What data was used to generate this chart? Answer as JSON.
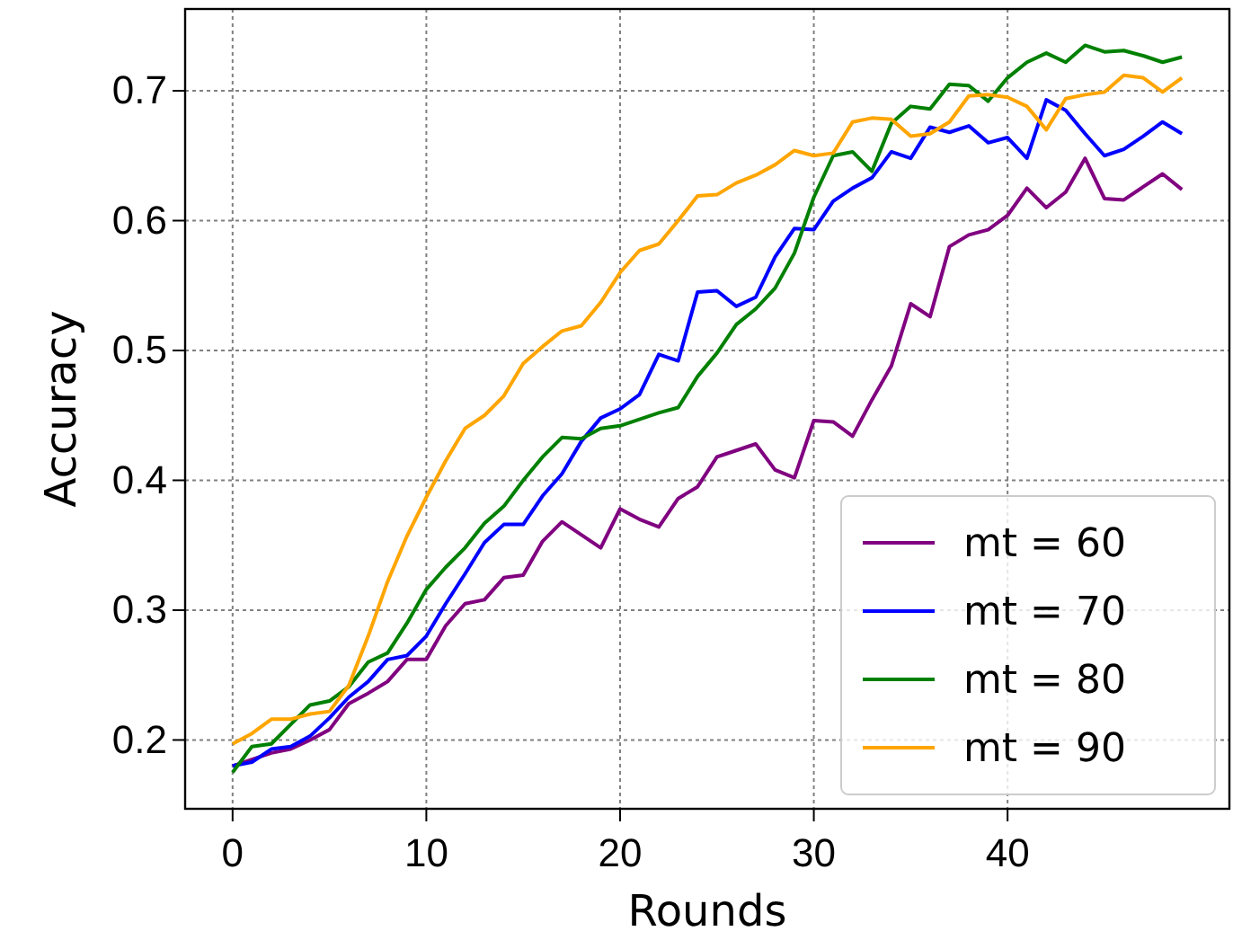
{
  "chart_data": {
    "type": "line",
    "xlabel": "Rounds",
    "ylabel": "Accuracy",
    "x": [
      0,
      1,
      2,
      3,
      4,
      5,
      6,
      7,
      8,
      9,
      10,
      11,
      12,
      13,
      14,
      15,
      16,
      17,
      18,
      19,
      20,
      21,
      22,
      23,
      24,
      25,
      26,
      27,
      28,
      29,
      30,
      31,
      32,
      33,
      34,
      35,
      36,
      37,
      38,
      39,
      40,
      41,
      42,
      43,
      44,
      45,
      46,
      47,
      48,
      49
    ],
    "xlim": [
      -2.45,
      51.45
    ],
    "xticks": [
      0,
      10,
      20,
      30,
      40
    ],
    "ylim": [
      0.147,
      0.763
    ],
    "yticks": [
      {
        "value": 0.2,
        "label": "0.2"
      },
      {
        "value": 0.3,
        "label": "0.3"
      },
      {
        "value": 0.4,
        "label": "0.4"
      },
      {
        "value": 0.5,
        "label": "0.5"
      },
      {
        "value": 0.6,
        "label": "0.6"
      },
      {
        "value": 0.7,
        "label": "0.7"
      }
    ],
    "grid": true,
    "legend": "bottom right",
    "line_style": "solid",
    "marker": "none",
    "series": [
      {
        "name": "mt = 60",
        "color": "#800080",
        "values": [
          0.18,
          0.185,
          0.19,
          0.193,
          0.2,
          0.208,
          0.228,
          0.236,
          0.245,
          0.262,
          0.262,
          0.288,
          0.305,
          0.308,
          0.325,
          0.327,
          0.353,
          0.368,
          0.358,
          0.348,
          0.378,
          0.37,
          0.364,
          0.386,
          0.395,
          0.418,
          0.423,
          0.428,
          0.408,
          0.402,
          0.446,
          0.445,
          0.434,
          0.462,
          0.488,
          0.536,
          0.526,
          0.58,
          0.589,
          0.593,
          0.604,
          0.625,
          0.61,
          0.622,
          0.648,
          0.617,
          0.616,
          0.626,
          0.636,
          0.624
        ]
      },
      {
        "name": "mt = 70",
        "color": "#0000ff",
        "values": [
          0.18,
          0.183,
          0.193,
          0.195,
          0.203,
          0.217,
          0.233,
          0.245,
          0.262,
          0.265,
          0.28,
          0.305,
          0.328,
          0.352,
          0.366,
          0.366,
          0.388,
          0.405,
          0.43,
          0.448,
          0.455,
          0.466,
          0.497,
          0.492,
          0.545,
          0.546,
          0.534,
          0.541,
          0.572,
          0.594,
          0.593,
          0.615,
          0.625,
          0.633,
          0.653,
          0.648,
          0.672,
          0.668,
          0.673,
          0.66,
          0.664,
          0.648,
          0.693,
          0.685,
          0.667,
          0.65,
          0.655,
          0.665,
          0.676,
          0.667
        ]
      },
      {
        "name": "mt = 80",
        "color": "#008000",
        "values": [
          0.175,
          0.195,
          0.197,
          0.212,
          0.227,
          0.23,
          0.241,
          0.26,
          0.267,
          0.29,
          0.316,
          0.333,
          0.348,
          0.367,
          0.38,
          0.4,
          0.418,
          0.433,
          0.432,
          0.44,
          0.442,
          0.447,
          0.452,
          0.456,
          0.48,
          0.498,
          0.52,
          0.532,
          0.548,
          0.575,
          0.618,
          0.65,
          0.653,
          0.638,
          0.675,
          0.688,
          0.686,
          0.705,
          0.704,
          0.692,
          0.71,
          0.722,
          0.729,
          0.722,
          0.735,
          0.73,
          0.731,
          0.727,
          0.722,
          0.726
        ]
      },
      {
        "name": "mt = 90",
        "color": "#ffa500",
        "values": [
          0.197,
          0.205,
          0.216,
          0.216,
          0.22,
          0.222,
          0.242,
          0.28,
          0.322,
          0.357,
          0.387,
          0.415,
          0.44,
          0.45,
          0.465,
          0.49,
          0.503,
          0.515,
          0.519,
          0.537,
          0.56,
          0.577,
          0.582,
          0.6,
          0.619,
          0.62,
          0.629,
          0.635,
          0.643,
          0.654,
          0.65,
          0.652,
          0.676,
          0.679,
          0.678,
          0.665,
          0.667,
          0.676,
          0.696,
          0.697,
          0.695,
          0.688,
          0.67,
          0.694,
          0.697,
          0.699,
          0.712,
          0.71,
          0.699,
          0.71
        ]
      }
    ]
  }
}
